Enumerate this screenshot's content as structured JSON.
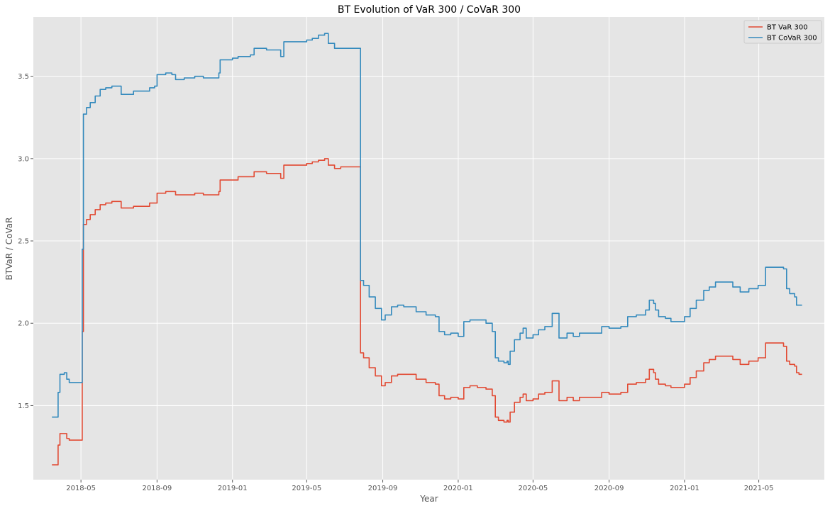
{
  "chart_data": {
    "type": "line",
    "title": "BT  Evolution of VaR 300 / CoVaR 300",
    "xlabel": "Year",
    "ylabel": "BTVaR / CoVaR",
    "xlim": [
      "2018-02-13",
      "2021-08-15"
    ],
    "ylim": [
      1.05,
      3.86
    ],
    "xticks": [
      "2018-05",
      "2018-09",
      "2019-01",
      "2019-05",
      "2019-09",
      "2020-01",
      "2020-05",
      "2020-09",
      "2021-01",
      "2021-05"
    ],
    "yticks": [
      1.5,
      2.0,
      2.5,
      3.0,
      3.5
    ],
    "grid": true,
    "legend": "top-right",
    "colors": {
      "background": "#e5e5e5",
      "grid": "#ffffff",
      "var": "#e24a33",
      "covar": "#348abd"
    },
    "series": [
      {
        "name": "BT  VaR 300",
        "color": "#e24a33",
        "points": [
          [
            "2018-03-15",
            1.14
          ],
          [
            "2018-03-21",
            1.14
          ],
          [
            "2018-03-25",
            1.26
          ],
          [
            "2018-03-28",
            1.33
          ],
          [
            "2018-04-04",
            1.33
          ],
          [
            "2018-04-08",
            1.3
          ],
          [
            "2018-04-12",
            1.29
          ],
          [
            "2018-04-18",
            1.29
          ],
          [
            "2018-05-01",
            1.29
          ],
          [
            "2018-05-03",
            1.95
          ],
          [
            "2018-05-05",
            2.6
          ],
          [
            "2018-05-10",
            2.63
          ],
          [
            "2018-05-16",
            2.66
          ],
          [
            "2018-05-24",
            2.69
          ],
          [
            "2018-06-01",
            2.72
          ],
          [
            "2018-06-10",
            2.73
          ],
          [
            "2018-06-20",
            2.74
          ],
          [
            "2018-07-01",
            2.74
          ],
          [
            "2018-07-05",
            2.7
          ],
          [
            "2018-07-15",
            2.7
          ],
          [
            "2018-07-25",
            2.71
          ],
          [
            "2018-08-05",
            2.71
          ],
          [
            "2018-08-20",
            2.73
          ],
          [
            "2018-08-28",
            2.73
          ],
          [
            "2018-09-01",
            2.79
          ],
          [
            "2018-09-15",
            2.8
          ],
          [
            "2018-09-25",
            2.8
          ],
          [
            "2018-10-01",
            2.78
          ],
          [
            "2018-10-15",
            2.78
          ],
          [
            "2018-11-01",
            2.79
          ],
          [
            "2018-11-10",
            2.79
          ],
          [
            "2018-11-15",
            2.78
          ],
          [
            "2018-12-01",
            2.78
          ],
          [
            "2018-12-10",
            2.8
          ],
          [
            "2018-12-12",
            2.87
          ],
          [
            "2019-01-01",
            2.87
          ],
          [
            "2019-01-10",
            2.89
          ],
          [
            "2019-01-30",
            2.89
          ],
          [
            "2019-02-05",
            2.92
          ],
          [
            "2019-02-20",
            2.92
          ],
          [
            "2019-02-25",
            2.91
          ],
          [
            "2019-03-15",
            2.91
          ],
          [
            "2019-03-20",
            2.88
          ],
          [
            "2019-03-25",
            2.96
          ],
          [
            "2019-04-15",
            2.96
          ],
          [
            "2019-05-01",
            2.97
          ],
          [
            "2019-05-10",
            2.98
          ],
          [
            "2019-05-20",
            2.99
          ],
          [
            "2019-05-30",
            3.0
          ],
          [
            "2019-06-05",
            2.96
          ],
          [
            "2019-06-15",
            2.94
          ],
          [
            "2019-06-25",
            2.95
          ],
          [
            "2019-07-24",
            2.95
          ],
          [
            "2019-07-27",
            1.82
          ],
          [
            "2019-08-01",
            1.79
          ],
          [
            "2019-08-10",
            1.73
          ],
          [
            "2019-08-20",
            1.68
          ],
          [
            "2019-08-30",
            1.62
          ],
          [
            "2019-09-05",
            1.64
          ],
          [
            "2019-09-15",
            1.68
          ],
          [
            "2019-09-25",
            1.69
          ],
          [
            "2019-10-05",
            1.69
          ],
          [
            "2019-10-15",
            1.69
          ],
          [
            "2019-10-25",
            1.66
          ],
          [
            "2019-11-10",
            1.64
          ],
          [
            "2019-11-25",
            1.63
          ],
          [
            "2019-12-01",
            1.56
          ],
          [
            "2019-12-10",
            1.54
          ],
          [
            "2019-12-20",
            1.55
          ],
          [
            "2020-01-01",
            1.54
          ],
          [
            "2020-01-10",
            1.61
          ],
          [
            "2020-01-20",
            1.62
          ],
          [
            "2020-02-01",
            1.61
          ],
          [
            "2020-02-15",
            1.6
          ],
          [
            "2020-02-25",
            1.56
          ],
          [
            "2020-03-01",
            1.43
          ],
          [
            "2020-03-06",
            1.41
          ],
          [
            "2020-03-15",
            1.4
          ],
          [
            "2020-03-20",
            1.41
          ],
          [
            "2020-03-22",
            1.4
          ],
          [
            "2020-03-25",
            1.46
          ],
          [
            "2020-04-01",
            1.52
          ],
          [
            "2020-04-10",
            1.55
          ],
          [
            "2020-04-15",
            1.57
          ],
          [
            "2020-04-20",
            1.53
          ],
          [
            "2020-05-01",
            1.54
          ],
          [
            "2020-05-10",
            1.57
          ],
          [
            "2020-05-20",
            1.58
          ],
          [
            "2020-06-01",
            1.65
          ],
          [
            "2020-06-10",
            1.65
          ],
          [
            "2020-06-12",
            1.53
          ],
          [
            "2020-06-25",
            1.55
          ],
          [
            "2020-07-05",
            1.53
          ],
          [
            "2020-07-15",
            1.55
          ],
          [
            "2020-08-01",
            1.55
          ],
          [
            "2020-08-20",
            1.58
          ],
          [
            "2020-09-01",
            1.57
          ],
          [
            "2020-09-20",
            1.58
          ],
          [
            "2020-10-01",
            1.63
          ],
          [
            "2020-10-15",
            1.64
          ],
          [
            "2020-10-30",
            1.66
          ],
          [
            "2020-11-05",
            1.72
          ],
          [
            "2020-11-12",
            1.7
          ],
          [
            "2020-11-15",
            1.66
          ],
          [
            "2020-11-20",
            1.63
          ],
          [
            "2020-12-01",
            1.62
          ],
          [
            "2020-12-10",
            1.61
          ],
          [
            "2021-01-01",
            1.63
          ],
          [
            "2021-01-10",
            1.67
          ],
          [
            "2021-01-20",
            1.71
          ],
          [
            "2021-02-01",
            1.76
          ],
          [
            "2021-02-10",
            1.78
          ],
          [
            "2021-02-20",
            1.8
          ],
          [
            "2021-03-10",
            1.8
          ],
          [
            "2021-03-20",
            1.78
          ],
          [
            "2021-04-01",
            1.75
          ],
          [
            "2021-04-15",
            1.77
          ],
          [
            "2021-04-30",
            1.79
          ],
          [
            "2021-05-10",
            1.79
          ],
          [
            "2021-05-12",
            1.88
          ],
          [
            "2021-06-05",
            1.88
          ],
          [
            "2021-06-10",
            1.86
          ],
          [
            "2021-06-15",
            1.77
          ],
          [
            "2021-06-20",
            1.75
          ],
          [
            "2021-06-28",
            1.74
          ],
          [
            "2021-07-01",
            1.7
          ],
          [
            "2021-07-05",
            1.69
          ],
          [
            "2021-07-10",
            1.69
          ]
        ]
      },
      {
        "name": "BT  CoVaR 300",
        "color": "#348abd",
        "points": [
          [
            "2018-03-15",
            1.43
          ],
          [
            "2018-03-21",
            1.43
          ],
          [
            "2018-03-25",
            1.58
          ],
          [
            "2018-03-28",
            1.69
          ],
          [
            "2018-04-04",
            1.7
          ],
          [
            "2018-04-08",
            1.66
          ],
          [
            "2018-04-12",
            1.64
          ],
          [
            "2018-04-18",
            1.64
          ],
          [
            "2018-05-01",
            1.64
          ],
          [
            "2018-05-03",
            2.45
          ],
          [
            "2018-05-05",
            3.27
          ],
          [
            "2018-05-10",
            3.31
          ],
          [
            "2018-05-16",
            3.34
          ],
          [
            "2018-05-24",
            3.38
          ],
          [
            "2018-06-01",
            3.42
          ],
          [
            "2018-06-10",
            3.43
          ],
          [
            "2018-06-20",
            3.44
          ],
          [
            "2018-07-01",
            3.44
          ],
          [
            "2018-07-05",
            3.39
          ],
          [
            "2018-07-15",
            3.39
          ],
          [
            "2018-07-25",
            3.41
          ],
          [
            "2018-08-05",
            3.41
          ],
          [
            "2018-08-20",
            3.43
          ],
          [
            "2018-08-28",
            3.44
          ],
          [
            "2018-09-01",
            3.51
          ],
          [
            "2018-09-15",
            3.52
          ],
          [
            "2018-09-25",
            3.51
          ],
          [
            "2018-10-01",
            3.48
          ],
          [
            "2018-10-15",
            3.49
          ],
          [
            "2018-11-01",
            3.5
          ],
          [
            "2018-11-10",
            3.5
          ],
          [
            "2018-11-15",
            3.49
          ],
          [
            "2018-12-01",
            3.49
          ],
          [
            "2018-12-10",
            3.52
          ],
          [
            "2018-12-12",
            3.6
          ],
          [
            "2019-01-01",
            3.61
          ],
          [
            "2019-01-10",
            3.62
          ],
          [
            "2019-01-30",
            3.63
          ],
          [
            "2019-02-05",
            3.67
          ],
          [
            "2019-02-20",
            3.67
          ],
          [
            "2019-02-25",
            3.66
          ],
          [
            "2019-03-15",
            3.66
          ],
          [
            "2019-03-20",
            3.62
          ],
          [
            "2019-03-25",
            3.71
          ],
          [
            "2019-04-15",
            3.71
          ],
          [
            "2019-05-01",
            3.72
          ],
          [
            "2019-05-10",
            3.73
          ],
          [
            "2019-05-20",
            3.75
          ],
          [
            "2019-05-30",
            3.76
          ],
          [
            "2019-06-05",
            3.7
          ],
          [
            "2019-06-15",
            3.67
          ],
          [
            "2019-06-25",
            3.67
          ],
          [
            "2019-07-24",
            3.67
          ],
          [
            "2019-07-27",
            2.26
          ],
          [
            "2019-08-01",
            2.23
          ],
          [
            "2019-08-10",
            2.16
          ],
          [
            "2019-08-20",
            2.09
          ],
          [
            "2019-08-30",
            2.02
          ],
          [
            "2019-09-05",
            2.05
          ],
          [
            "2019-09-15",
            2.1
          ],
          [
            "2019-09-25",
            2.11
          ],
          [
            "2019-10-05",
            2.1
          ],
          [
            "2019-10-15",
            2.1
          ],
          [
            "2019-10-25",
            2.07
          ],
          [
            "2019-11-10",
            2.05
          ],
          [
            "2019-11-25",
            2.04
          ],
          [
            "2019-12-01",
            1.95
          ],
          [
            "2019-12-10",
            1.93
          ],
          [
            "2019-12-20",
            1.94
          ],
          [
            "2020-01-01",
            1.92
          ],
          [
            "2020-01-10",
            2.01
          ],
          [
            "2020-01-20",
            2.02
          ],
          [
            "2020-02-01",
            2.02
          ],
          [
            "2020-02-15",
            2.0
          ],
          [
            "2020-02-25",
            1.95
          ],
          [
            "2020-03-01",
            1.79
          ],
          [
            "2020-03-06",
            1.77
          ],
          [
            "2020-03-15",
            1.76
          ],
          [
            "2020-03-20",
            1.77
          ],
          [
            "2020-03-22",
            1.75
          ],
          [
            "2020-03-25",
            1.83
          ],
          [
            "2020-04-01",
            1.9
          ],
          [
            "2020-04-10",
            1.94
          ],
          [
            "2020-04-15",
            1.97
          ],
          [
            "2020-04-20",
            1.91
          ],
          [
            "2020-05-01",
            1.93
          ],
          [
            "2020-05-10",
            1.96
          ],
          [
            "2020-05-20",
            1.98
          ],
          [
            "2020-06-01",
            2.06
          ],
          [
            "2020-06-10",
            2.06
          ],
          [
            "2020-06-12",
            1.91
          ],
          [
            "2020-06-25",
            1.94
          ],
          [
            "2020-07-05",
            1.92
          ],
          [
            "2020-07-15",
            1.94
          ],
          [
            "2020-08-01",
            1.94
          ],
          [
            "2020-08-20",
            1.98
          ],
          [
            "2020-09-01",
            1.97
          ],
          [
            "2020-09-20",
            1.98
          ],
          [
            "2020-10-01",
            2.04
          ],
          [
            "2020-10-15",
            2.05
          ],
          [
            "2020-10-30",
            2.08
          ],
          [
            "2020-11-05",
            2.14
          ],
          [
            "2020-11-12",
            2.12
          ],
          [
            "2020-11-15",
            2.08
          ],
          [
            "2020-11-20",
            2.04
          ],
          [
            "2020-12-01",
            2.03
          ],
          [
            "2020-12-10",
            2.01
          ],
          [
            "2021-01-01",
            2.04
          ],
          [
            "2021-01-10",
            2.09
          ],
          [
            "2021-01-20",
            2.14
          ],
          [
            "2021-02-01",
            2.2
          ],
          [
            "2021-02-10",
            2.22
          ],
          [
            "2021-02-20",
            2.25
          ],
          [
            "2021-03-10",
            2.25
          ],
          [
            "2021-03-20",
            2.22
          ],
          [
            "2021-04-01",
            2.19
          ],
          [
            "2021-04-15",
            2.21
          ],
          [
            "2021-04-30",
            2.23
          ],
          [
            "2021-05-10",
            2.23
          ],
          [
            "2021-05-12",
            2.34
          ],
          [
            "2021-06-05",
            2.34
          ],
          [
            "2021-06-10",
            2.33
          ],
          [
            "2021-06-15",
            2.21
          ],
          [
            "2021-06-20",
            2.18
          ],
          [
            "2021-06-28",
            2.16
          ],
          [
            "2021-07-01",
            2.11
          ],
          [
            "2021-07-05",
            2.11
          ],
          [
            "2021-07-10",
            2.11
          ]
        ]
      }
    ]
  }
}
